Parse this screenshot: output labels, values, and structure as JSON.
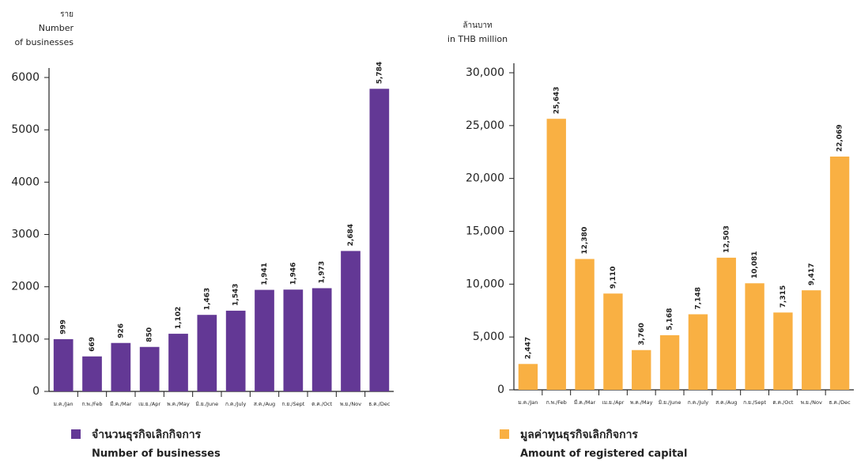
{
  "chart_data": [
    {
      "type": "bar",
      "y_axis_label": [
        "ราย",
        "Number",
        "of businesses"
      ],
      "categories": [
        "ม.ค./Jan",
        "ก.พ./Feb",
        "มี.ค./Mar",
        "เม.ย./Apr",
        "พ.ค./May",
        "มิ.ย./June",
        "ก.ค./July",
        "ส.ค./Aug",
        "ก.ย./Sept",
        "ต.ค./Oct",
        "พ.ย./Nov",
        "ธ.ค./Dec"
      ],
      "values": [
        999,
        669,
        926,
        850,
        1102,
        1463,
        1543,
        1941,
        1946,
        1973,
        2684,
        5784
      ],
      "value_labels": [
        "999",
        "669",
        "926",
        "850",
        "1,102",
        "1,463",
        "1,543",
        "1,941",
        "1,946",
        "1,973",
        "2,684",
        "5,784"
      ],
      "color": "#633895",
      "ylim": [
        0,
        6000
      ],
      "yticks": [
        0,
        1000,
        2000,
        3000,
        4000,
        5000,
        6000
      ],
      "legend_label": [
        "จำนวนธุรกิจเลิกกิจการ",
        "Number of businesses"
      ]
    },
    {
      "type": "bar",
      "y_axis_label": [
        "ล้านบาท",
        "in THB million"
      ],
      "categories": [
        "ม.ค./Jan",
        "ก.พ./Feb",
        "มี.ค./Mar",
        "เม.ย./Apr",
        "พ.ค./May",
        "มิ.ย./June",
        "ก.ค./July",
        "ส.ค./Aug",
        "ก.ย./Sept",
        "ต.ค./Oct",
        "พ.ย./Nov",
        "ธ.ค./Dec"
      ],
      "values": [
        2447,
        25643,
        12380,
        9110,
        3760,
        5168,
        7148,
        12503,
        10081,
        7315,
        9417,
        22069
      ],
      "value_labels": [
        "2,447",
        "25,643",
        "12,380",
        "9,110",
        "3,760",
        "5,168",
        "7,148",
        "12,503",
        "10,081",
        "7,315",
        "9,417",
        "22,069"
      ],
      "color": "#f9b043",
      "ylim": [
        0,
        30000
      ],
      "yticks": [
        0,
        {
          "value": 5000,
          "label": "5,000"
        },
        {
          "value": 10000,
          "label": "10,000"
        },
        {
          "value": 15000,
          "label": "15,000"
        },
        {
          "value": 20000,
          "label": "20,000"
        },
        {
          "value": 25000,
          "label": "25,000"
        },
        {
          "value": 30000,
          "label": "30,000"
        }
      ],
      "legend_label": [
        "มูลค่าทุนธุรกิจเลิกกิจการ",
        "Amount of registered capital"
      ]
    }
  ]
}
